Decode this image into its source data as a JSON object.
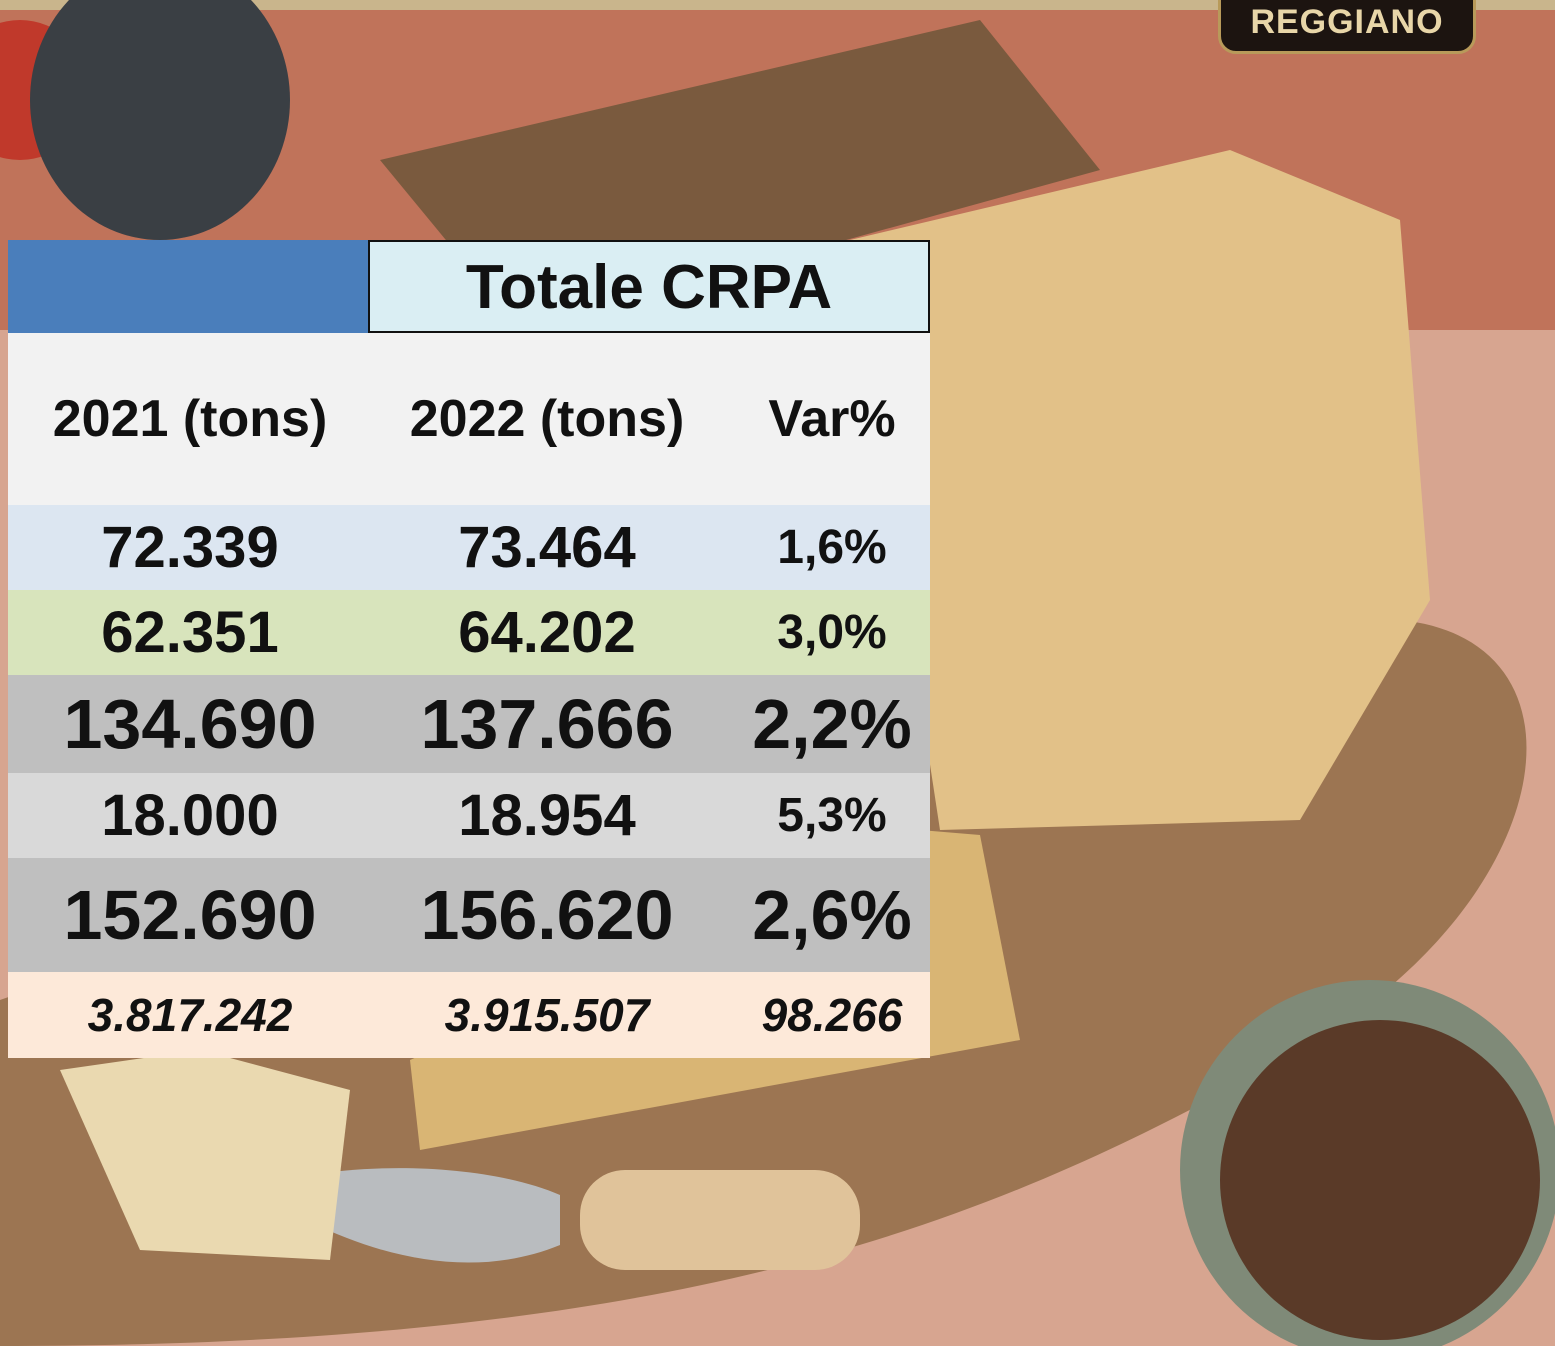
{
  "logo": "REGGIANO",
  "table": {
    "title": "Totale CRPA",
    "columns": [
      "2021 (tons)",
      "2022 (tons)",
      "Var%"
    ],
    "rows": [
      [
        "72.339",
        "73.464",
        "1,6%"
      ],
      [
        "62.351",
        "64.202",
        "3,0%"
      ],
      [
        "134.690",
        "137.666",
        "2,2%"
      ],
      [
        "18.000",
        "18.954",
        "5,3%"
      ],
      [
        "152.690",
        "156.620",
        "2,6%"
      ],
      [
        "3.817.242",
        "3.915.507",
        "98.266"
      ]
    ]
  }
}
